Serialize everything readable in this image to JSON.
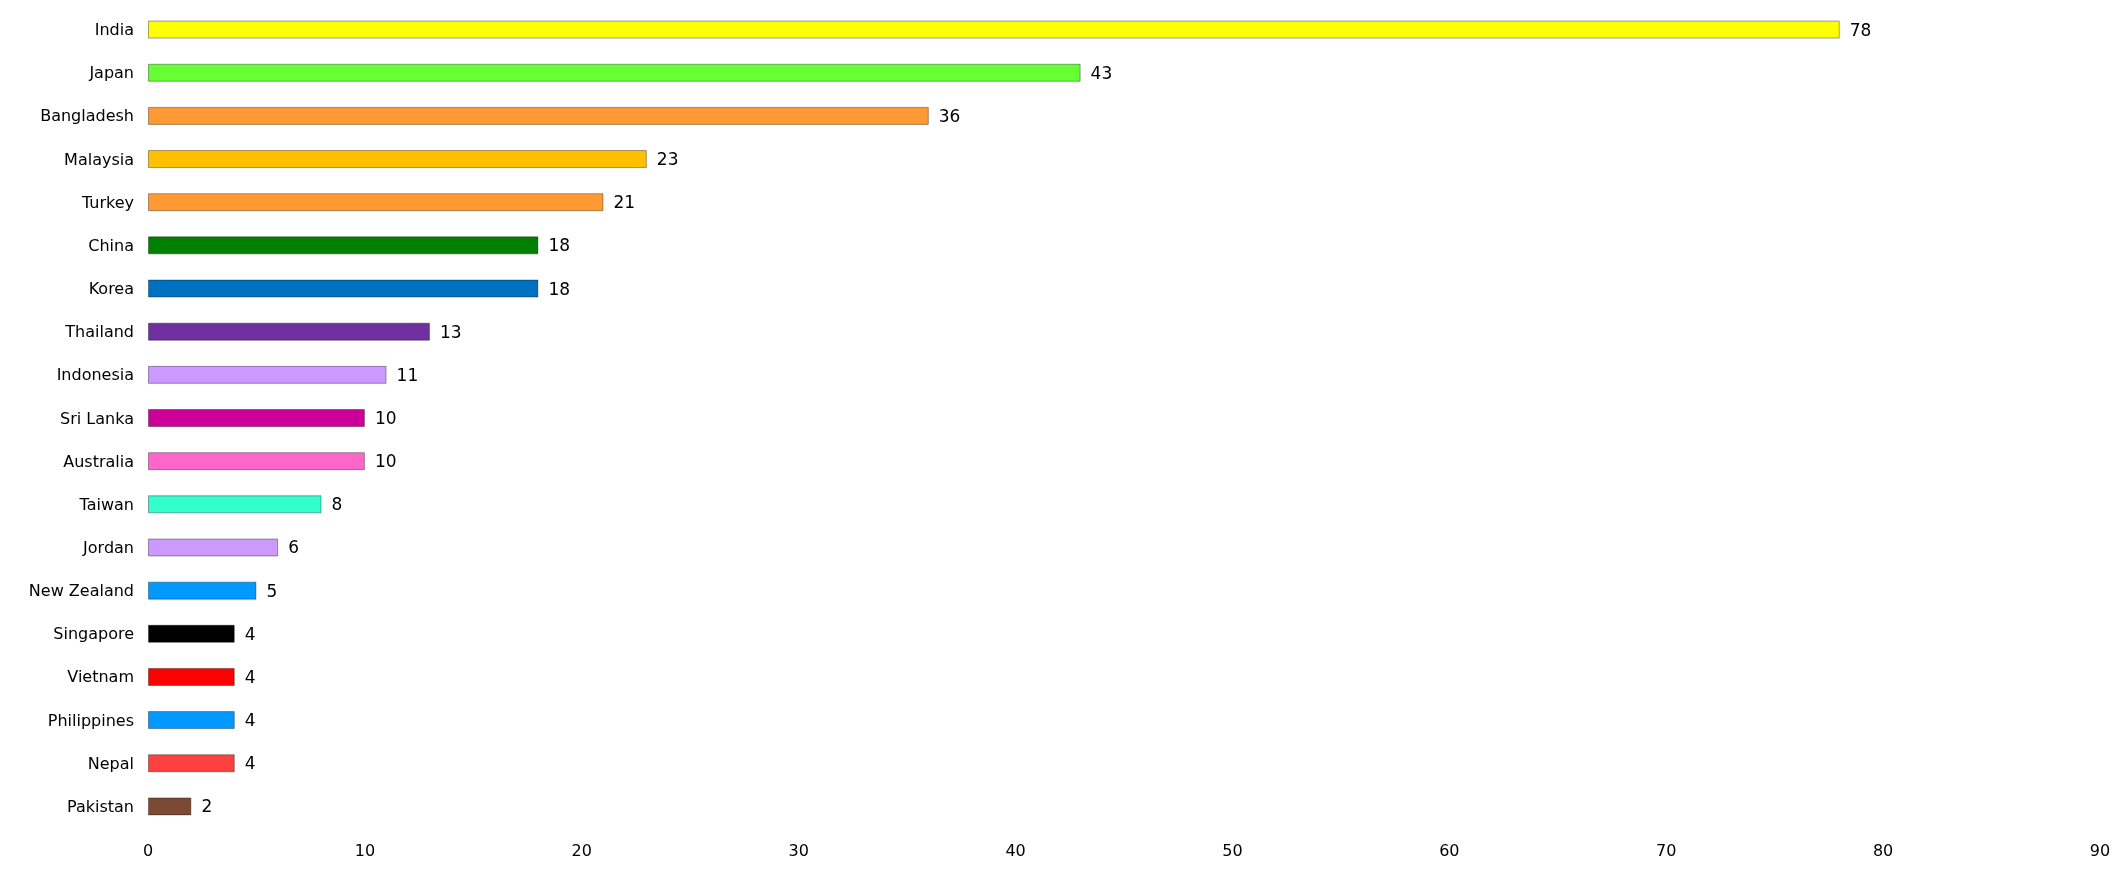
{
  "chart_data": {
    "type": "bar",
    "orientation": "horizontal",
    "categories": [
      "India",
      "Japan",
      "Bangladesh",
      "Malaysia",
      "Turkey",
      "China",
      "Korea",
      "Thailand",
      "Indonesia",
      "Sri Lanka",
      "Australia",
      "Taiwan",
      "Jordan",
      "New Zealand",
      "Singapore",
      "Vietnam",
      "Philippines",
      "Nepal",
      "Pakistan"
    ],
    "values": [
      78,
      43,
      36,
      23,
      21,
      18,
      18,
      13,
      11,
      10,
      10,
      8,
      6,
      5,
      4,
      4,
      4,
      4,
      2
    ],
    "colors": [
      "#ffff00",
      "#66ff33",
      "#ff9933",
      "#ffc000",
      "#ff9933",
      "#008000",
      "#0070c0",
      "#7030a0",
      "#cc99ff",
      "#cc0099",
      "#ff66cc",
      "#33ffcc",
      "#cc99ff",
      "#0099ff",
      "#000000",
      "#ff0000",
      "#0099ff",
      "#ff4040",
      "#7b4a35"
    ],
    "xlim": [
      0,
      90
    ],
    "xticks": [
      0,
      10,
      20,
      30,
      40,
      50,
      60,
      70,
      80,
      90
    ],
    "data_labels": true
  }
}
